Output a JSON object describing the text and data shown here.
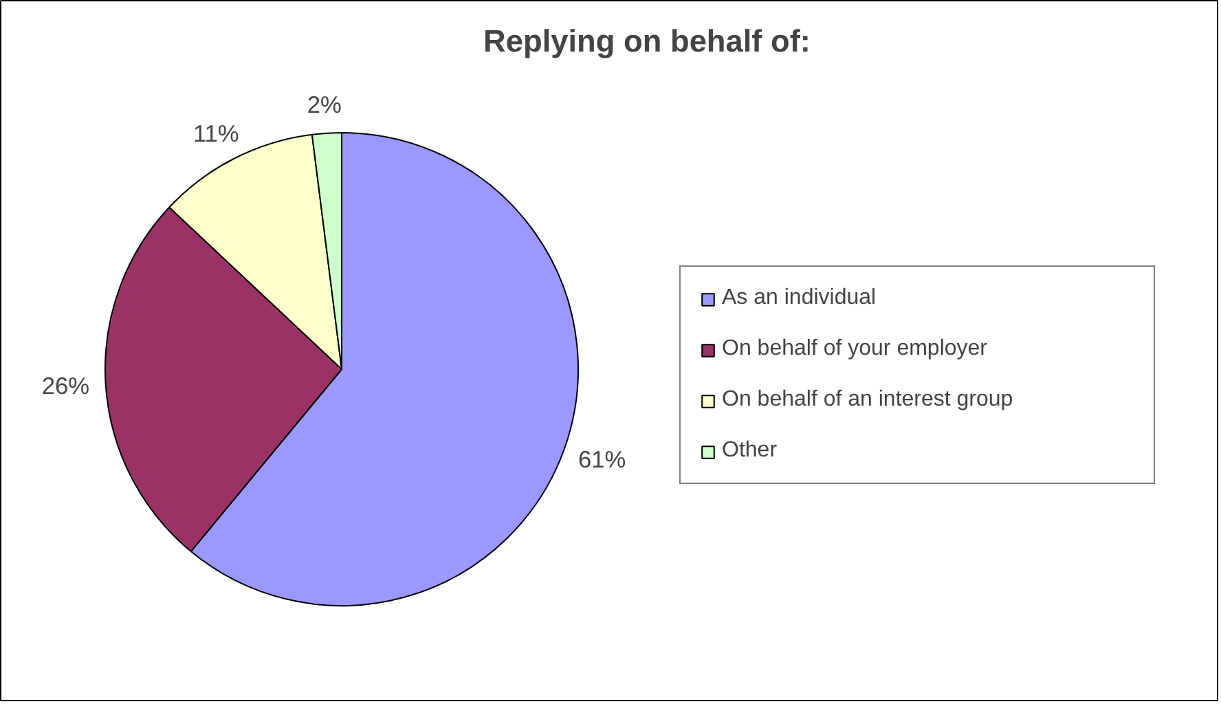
{
  "chart_data": {
    "type": "pie",
    "title": "Replying on behalf of:",
    "categories": [
      "As an individual",
      "On behalf of your employer",
      "On behalf of an interest group",
      "Other"
    ],
    "values": [
      61,
      26,
      11,
      2
    ],
    "colors": [
      "#9999ff",
      "#993366",
      "#ffffcc",
      "#ccffcc"
    ],
    "value_labels": [
      "61%",
      "26%",
      "11%",
      "2%"
    ],
    "legend": "right"
  }
}
